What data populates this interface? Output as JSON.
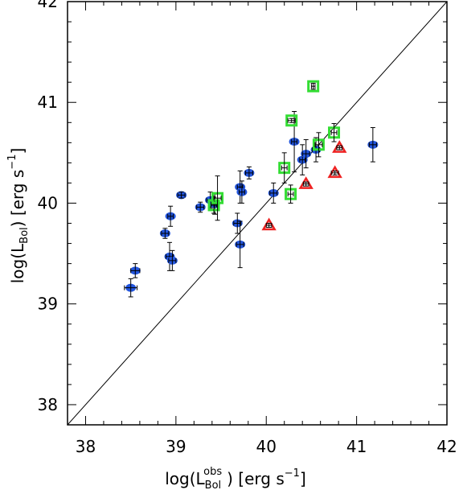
{
  "chart_data": {
    "type": "scatter",
    "title": "",
    "xlabel": {
      "prefix": "log(L",
      "sub": "Bol",
      "sup": "obs",
      "suffix": ") [erg s",
      "unit_exp": "−1",
      "close": "]"
    },
    "ylabel": {
      "prefix": "log(L",
      "sub": "Bol",
      "suffix": ") [erg s",
      "unit_exp": "−1",
      "close": "]"
    },
    "xlim": [
      37.8,
      42
    ],
    "ylim": [
      37.8,
      42
    ],
    "xticks": [
      "38",
      "39",
      "40",
      "41",
      "42"
    ],
    "yticks": [
      "38",
      "39",
      "40",
      "41",
      "42"
    ],
    "reference_line": "y = x",
    "colors": {
      "circle": "#2255dd",
      "square": "#33dd33",
      "triangle": "#ee2222",
      "errorbar": "#000000",
      "line": "#000000"
    },
    "series": [
      {
        "marker": "circle",
        "points": [
          {
            "x": 38.5,
            "y": 39.16,
            "xerr": 0.07,
            "yerr": 0.09
          },
          {
            "x": 38.55,
            "y": 39.33,
            "xerr": 0.05,
            "yerr": 0.07
          },
          {
            "x": 38.88,
            "y": 39.7,
            "xerr": 0.04,
            "yerr": 0.05
          },
          {
            "x": 38.93,
            "y": 39.47,
            "xerr": 0.04,
            "yerr": 0.14
          },
          {
            "x": 38.96,
            "y": 39.43,
            "xerr": 0.04,
            "yerr": 0.1
          },
          {
            "x": 38.94,
            "y": 39.87,
            "xerr": 0.03,
            "yerr": 0.1
          },
          {
            "x": 39.06,
            "y": 40.08,
            "xerr": 0.04,
            "yerr": 0.03
          },
          {
            "x": 39.27,
            "y": 39.96,
            "xerr": 0.04,
            "yerr": 0.05
          },
          {
            "x": 39.38,
            "y": 40.03,
            "xerr": 0.04,
            "yerr": 0.08
          },
          {
            "x": 39.43,
            "y": 39.99,
            "xerr": 0.04,
            "yerr": 0.1
          },
          {
            "x": 39.68,
            "y": 39.8,
            "xerr": 0.04,
            "yerr": 0.1
          },
          {
            "x": 39.71,
            "y": 39.59,
            "xerr": 0.04,
            "yerr": 0.23
          },
          {
            "x": 39.71,
            "y": 40.16,
            "xerr": 0.03,
            "yerr": 0.16
          },
          {
            "x": 39.73,
            "y": 40.11,
            "xerr": 0.03,
            "yerr": 0.11
          },
          {
            "x": 39.81,
            "y": 40.3,
            "xerr": 0.04,
            "yerr": 0.06
          },
          {
            "x": 40.08,
            "y": 40.1,
            "xerr": 0.04,
            "yerr": 0.1
          },
          {
            "x": 40.31,
            "y": 40.61,
            "xerr": 0.03,
            "yerr": 0.3
          },
          {
            "x": 40.4,
            "y": 40.43,
            "xerr": 0.03,
            "yerr": 0.15
          },
          {
            "x": 40.44,
            "y": 40.49,
            "xerr": 0.04,
            "yerr": 0.14
          },
          {
            "x": 40.55,
            "y": 40.53,
            "xerr": 0.04,
            "yerr": 0.12
          },
          {
            "x": 41.18,
            "y": 40.58,
            "xerr": 0.04,
            "yerr": 0.17
          }
        ]
      },
      {
        "marker": "square",
        "points": [
          {
            "x": 39.42,
            "y": 39.98,
            "xerr": 0.03,
            "yerr": 0.08
          },
          {
            "x": 39.46,
            "y": 40.05,
            "xerr": 0.04,
            "yerr": 0.22
          },
          {
            "x": 40.2,
            "y": 40.35,
            "xerr": 0.03,
            "yerr": 0.15
          },
          {
            "x": 40.27,
            "y": 40.09,
            "xerr": 0.03,
            "yerr": 0.09
          },
          {
            "x": 40.28,
            "y": 40.82,
            "xerr": 0.04,
            "yerr": 0.02
          },
          {
            "x": 40.52,
            "y": 41.16,
            "xerr": 0.02,
            "yerr": 0.03
          },
          {
            "x": 40.58,
            "y": 40.58,
            "xerr": 0.04,
            "yerr": 0.12
          },
          {
            "x": 40.75,
            "y": 40.7,
            "xerr": 0.03,
            "yerr": 0.09
          }
        ]
      },
      {
        "marker": "triangle",
        "points": [
          {
            "x": 40.03,
            "y": 39.78,
            "xerr": 0.03,
            "yerr": 0.02
          },
          {
            "x": 40.44,
            "y": 40.19,
            "xerr": 0.03,
            "yerr": 0.02
          },
          {
            "x": 40.76,
            "y": 40.3,
            "xerr": 0.04,
            "yerr": 0.02
          },
          {
            "x": 40.81,
            "y": 40.55,
            "xerr": 0.03,
            "yerr": 0.02
          }
        ]
      }
    ]
  }
}
